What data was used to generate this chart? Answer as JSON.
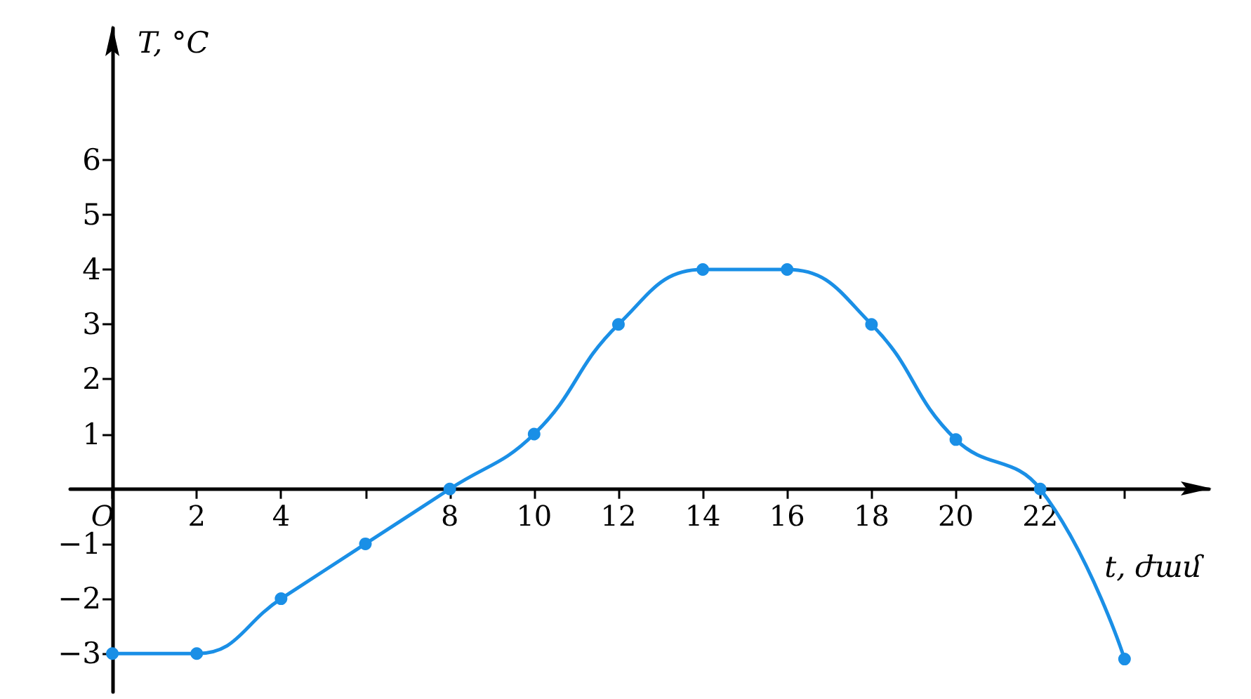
{
  "chart_data": {
    "type": "line",
    "xlabel": "t, ժամ",
    "ylabel": "T, °C",
    "x": [
      0,
      2,
      4,
      6,
      8,
      10,
      12,
      14,
      16,
      18,
      20,
      22,
      24
    ],
    "series": [
      {
        "color": "#1a8fe6",
        "values": [
          -3,
          -3,
          -2,
          -1,
          0,
          1,
          3,
          4,
          4,
          3,
          0.9,
          0,
          -3.1
        ]
      }
    ],
    "xlim": [
      -1,
      26
    ],
    "ylim": [
      -3.7,
      8.4
    ],
    "xticks": [
      {
        "value": 0,
        "label": "O"
      },
      2,
      4,
      {
        "value": 6,
        "label": null
      },
      8,
      10,
      12,
      14,
      16,
      18,
      20,
      22,
      {
        "value": 24,
        "label": null
      }
    ],
    "yticks": [
      -3,
      -2,
      -1,
      1,
      2,
      3,
      4,
      5,
      6
    ],
    "grid": false,
    "marker": "circle",
    "line_style": "solid"
  }
}
